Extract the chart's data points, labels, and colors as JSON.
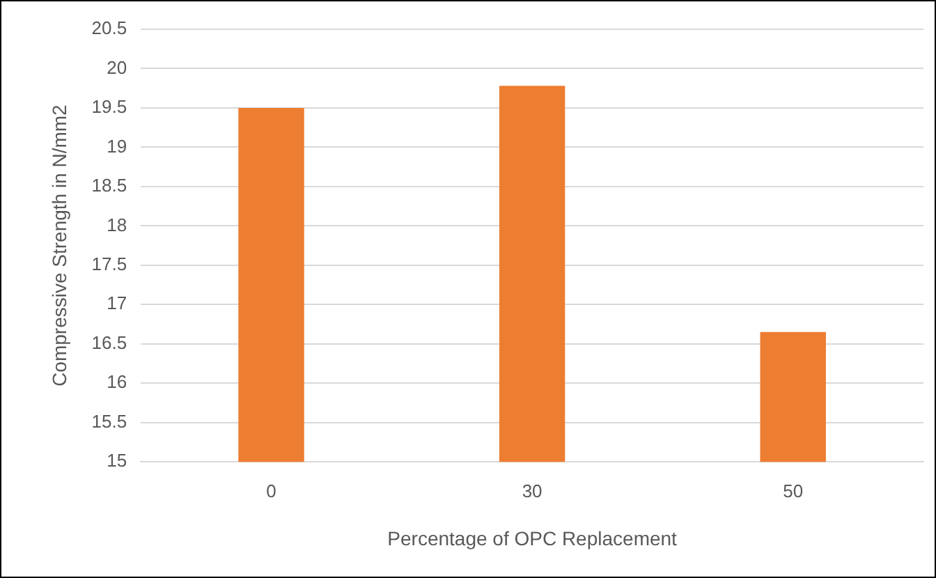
{
  "chart_data": {
    "type": "bar",
    "xlabel": "Percentage of OPC Replacement",
    "ylabel": "Compressive Strength in N/mm2",
    "categories": [
      "0",
      "30",
      "50"
    ],
    "series": [
      {
        "color": "#ed7d31",
        "values": [
          19.5,
          19.78,
          16.65
        ]
      }
    ],
    "ylim": [
      15,
      20.5
    ],
    "yticks": [
      15,
      15.5,
      16,
      16.5,
      17,
      17.5,
      18,
      18.5,
      19,
      19.5,
      20,
      20.5
    ],
    "grid": "y",
    "legend": false
  }
}
